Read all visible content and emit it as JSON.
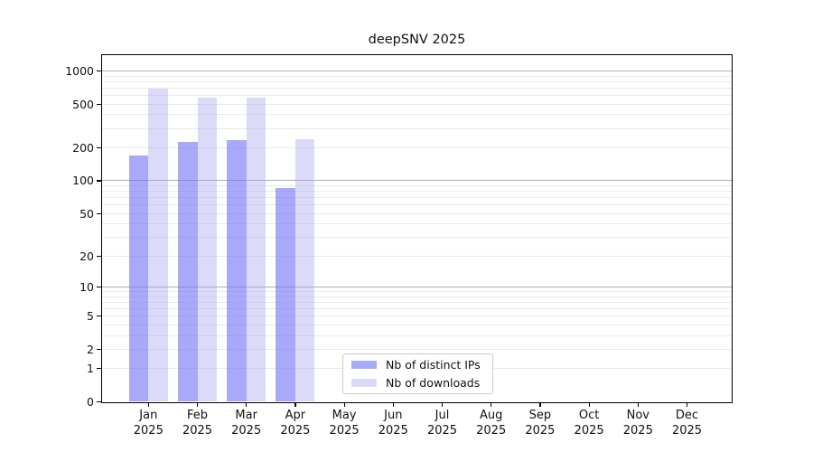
{
  "title": "deepSNV 2025",
  "chart_data": {
    "type": "bar",
    "title": "deepSNV 2025",
    "categories": [
      "Jan 2025",
      "Feb 2025",
      "Mar 2025",
      "Apr 2025",
      "May 2025",
      "Jun 2025",
      "Jul 2025",
      "Aug 2025",
      "Sep 2025",
      "Oct 2025",
      "Nov 2025",
      "Dec 2025"
    ],
    "series": [
      {
        "name": "Nb of distinct IPs",
        "color": "#a9a9f9",
        "fill": "rgba(116,116,245,0.62)",
        "values": [
          170,
          225,
          235,
          85,
          null,
          null,
          null,
          null,
          null,
          null,
          null,
          null
        ]
      },
      {
        "name": "Nb of downloads",
        "color": "#dbdbf9",
        "fill": "rgba(165,165,240,0.40)",
        "values": [
          690,
          570,
          570,
          240,
          null,
          null,
          null,
          null,
          null,
          null,
          null,
          null
        ]
      }
    ],
    "y_ticks": [
      0,
      1,
      2,
      5,
      10,
      20,
      50,
      100,
      200,
      500,
      1000
    ],
    "y_scale": "log10(1+x)",
    "ylim": [
      0,
      1400
    ],
    "xlabel": "",
    "ylabel": "",
    "grid": {
      "orientation": "horizontal",
      "major_at": [
        10,
        100,
        1000
      ],
      "minor_multiples": [
        1,
        2,
        3,
        4,
        5,
        6,
        7,
        8,
        9
      ],
      "major_color": "#b0b0b0",
      "minor_color": "#eaeaea"
    },
    "legend_position": "inside-bottom-center"
  }
}
